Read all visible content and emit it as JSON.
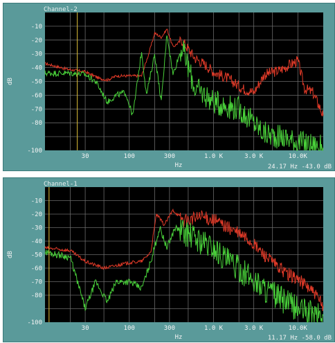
{
  "chart_data": [
    {
      "type": "line",
      "title": "Channel-2",
      "xlabel": "Hz",
      "ylabel": "dB",
      "x_scale": "log",
      "xlim": [
        10,
        20000
      ],
      "ylim": [
        -100,
        0
      ],
      "y_ticks": [
        "-10",
        "-20",
        "-30",
        "-40",
        "-50",
        "-60",
        "-70",
        "-80",
        "-100"
      ],
      "x_ticks": [
        {
          "label": "30",
          "value": 30
        },
        {
          "label": "100",
          "value": 100
        },
        {
          "label": "300",
          "value": 300
        },
        {
          "label": "1.0 K",
          "value": 1000
        },
        {
          "label": "3.0 K",
          "value": 3000
        },
        {
          "label": "10.0K",
          "value": 10000
        }
      ],
      "cursor": {
        "freq": 24.17,
        "readout": "24.17   Hz -43.0  dB"
      },
      "grid": true,
      "series": [
        {
          "color": "#e03a28",
          "noise": 4,
          "points": [
            [
              10,
              -37
            ],
            [
              18,
              -41
            ],
            [
              30,
              -43
            ],
            [
              45,
              -48
            ],
            [
              55,
              -49
            ],
            [
              70,
              -46
            ],
            [
              100,
              -46
            ],
            [
              140,
              -46
            ],
            [
              170,
              -30
            ],
            [
              200,
              -15
            ],
            [
              240,
              -18
            ],
            [
              280,
              -12
            ],
            [
              330,
              -25
            ],
            [
              420,
              -20
            ],
            [
              600,
              -33
            ],
            [
              800,
              -38
            ],
            [
              1000,
              -43
            ],
            [
              1500,
              -48
            ],
            [
              2200,
              -55
            ],
            [
              3000,
              -58
            ],
            [
              4000,
              -45
            ],
            [
              6000,
              -42
            ],
            [
              8000,
              -38
            ],
            [
              10000,
              -35
            ],
            [
              12000,
              -55
            ],
            [
              15000,
              -58
            ],
            [
              18000,
              -68
            ],
            [
              20000,
              -75
            ]
          ]
        },
        {
          "color": "#49d03a",
          "noise": 9,
          "points": [
            [
              10,
              -44
            ],
            [
              20,
              -44
            ],
            [
              30,
              -45
            ],
            [
              40,
              -50
            ],
            [
              55,
              -65
            ],
            [
              70,
              -60
            ],
            [
              90,
              -58
            ],
            [
              110,
              -75
            ],
            [
              140,
              -28
            ],
            [
              160,
              -60
            ],
            [
              200,
              -30
            ],
            [
              240,
              -65
            ],
            [
              280,
              -15
            ],
            [
              330,
              -45
            ],
            [
              420,
              -25
            ],
            [
              600,
              -55
            ],
            [
              800,
              -60
            ],
            [
              1000,
              -65
            ],
            [
              1500,
              -68
            ],
            [
              2000,
              -70
            ],
            [
              3000,
              -80
            ],
            [
              4000,
              -88
            ],
            [
              6000,
              -90
            ],
            [
              8000,
              -92
            ],
            [
              10000,
              -94
            ],
            [
              14000,
              -96
            ],
            [
              20000,
              -98
            ]
          ]
        }
      ]
    },
    {
      "type": "line",
      "title": "Channel-1",
      "xlabel": "Hz",
      "ylabel": "dB",
      "x_scale": "log",
      "xlim": [
        10,
        20000
      ],
      "ylim": [
        -100,
        0
      ],
      "y_ticks": [
        "-10",
        "-20",
        "-30",
        "-40",
        "-50",
        "-60",
        "-70",
        "-80",
        "-100"
      ],
      "x_ticks": [
        {
          "label": "30",
          "value": 30
        },
        {
          "label": "100",
          "value": 100
        },
        {
          "label": "300",
          "value": 300
        },
        {
          "label": "1.0 K",
          "value": 1000
        },
        {
          "label": "3.0 K",
          "value": 3000
        },
        {
          "label": "10.0K",
          "value": 10000
        }
      ],
      "cursor": {
        "freq": 11.17,
        "readout": "11.17   Hz -58.0  dB"
      },
      "grid": true,
      "series": [
        {
          "color": "#e03a28",
          "noise": 5,
          "points": [
            [
              10,
              -45
            ],
            [
              20,
              -47
            ],
            [
              30,
              -55
            ],
            [
              50,
              -60
            ],
            [
              70,
              -58
            ],
            [
              100,
              -56
            ],
            [
              140,
              -55
            ],
            [
              180,
              -48
            ],
            [
              210,
              -20
            ],
            [
              260,
              -28
            ],
            [
              330,
              -17
            ],
            [
              450,
              -25
            ],
            [
              700,
              -22
            ],
            [
              1000,
              -24
            ],
            [
              1500,
              -30
            ],
            [
              2500,
              -38
            ],
            [
              4000,
              -50
            ],
            [
              6000,
              -60
            ],
            [
              8000,
              -65
            ],
            [
              10000,
              -68
            ],
            [
              14000,
              -75
            ],
            [
              20000,
              -88
            ]
          ]
        },
        {
          "color": "#49d03a",
          "noise": 10,
          "points": [
            [
              10,
              -48
            ],
            [
              20,
              -52
            ],
            [
              30,
              -90
            ],
            [
              40,
              -70
            ],
            [
              55,
              -85
            ],
            [
              70,
              -70
            ],
            [
              100,
              -70
            ],
            [
              140,
              -75
            ],
            [
              180,
              -55
            ],
            [
              230,
              -30
            ],
            [
              280,
              -45
            ],
            [
              350,
              -30
            ],
            [
              500,
              -35
            ],
            [
              700,
              -40
            ],
            [
              1000,
              -45
            ],
            [
              1500,
              -55
            ],
            [
              2500,
              -65
            ],
            [
              4000,
              -75
            ],
            [
              6000,
              -82
            ],
            [
              10000,
              -90
            ],
            [
              14000,
              -93
            ],
            [
              20000,
              -95
            ]
          ]
        }
      ]
    }
  ]
}
